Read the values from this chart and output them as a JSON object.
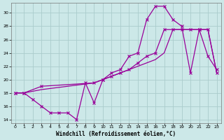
{
  "xlabel": "Windchill (Refroidissement éolien,°C)",
  "background_color": "#cce8e8",
  "grid_color": "#aacccc",
  "line_color": "#990099",
  "xlim_min": -0.5,
  "xlim_max": 23.5,
  "ylim_min": 13.5,
  "ylim_max": 31.5,
  "yticks": [
    14,
    16,
    18,
    20,
    22,
    24,
    26,
    28,
    30
  ],
  "xticks": [
    0,
    1,
    2,
    3,
    4,
    5,
    6,
    7,
    8,
    9,
    10,
    11,
    12,
    13,
    14,
    15,
    16,
    17,
    18,
    19,
    20,
    21,
    22,
    23
  ],
  "line1_x": [
    0,
    1,
    2,
    3,
    4,
    5,
    6,
    7,
    8,
    9,
    10,
    11,
    12,
    13,
    14,
    15,
    16,
    17,
    18,
    19,
    20,
    21,
    22,
    23
  ],
  "line1_y": [
    18,
    18,
    17,
    16,
    15,
    15,
    15,
    14,
    19.5,
    16.5,
    20,
    21,
    21.5,
    23.5,
    24,
    29,
    31,
    31,
    29,
    28,
    21,
    27.5,
    23.5,
    21.5
  ],
  "line2_x": [
    0,
    1,
    3,
    9,
    10,
    11,
    12,
    13,
    14,
    15,
    16,
    17,
    18,
    19,
    20,
    21,
    22,
    23
  ],
  "line2_y": [
    18,
    18,
    19,
    19.5,
    20,
    20.5,
    21,
    21.5,
    22.5,
    23.5,
    24,
    27.5,
    27.5,
    27.5,
    27.5,
    27.5,
    27.5,
    21
  ],
  "line3_x": [
    0,
    1,
    3,
    9,
    10,
    11,
    12,
    13,
    14,
    15,
    16,
    17,
    18,
    19,
    20,
    21,
    22,
    23
  ],
  "line3_y": [
    18,
    18,
    18.5,
    19.5,
    20,
    20.5,
    21,
    21.5,
    22,
    22.5,
    23,
    24,
    27.5,
    27.5,
    27.5,
    27.5,
    27.5,
    21
  ]
}
